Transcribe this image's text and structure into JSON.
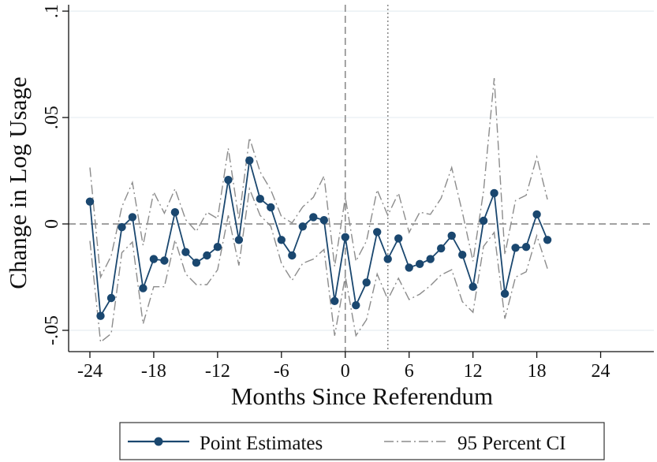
{
  "colors": {
    "point_series": "#1a476f",
    "ci_series": "#8c8c8c",
    "grid": "#e6eef2",
    "reference": "#8c8c8c",
    "axis": "#111111"
  },
  "chart_data": {
    "type": "line",
    "title": "",
    "xlabel": "Months Since Referendum",
    "ylabel": "Change in Log Usage",
    "xlim": [
      -26,
      29
    ],
    "ylim": [
      -0.06,
      0.103
    ],
    "xticks": [
      -24,
      -18,
      -12,
      -6,
      0,
      6,
      12,
      18,
      24
    ],
    "xtick_labels": [
      "-24",
      "-18",
      "-12",
      "-6",
      "0",
      "6",
      "12",
      "18",
      "24"
    ],
    "yticks": [
      -0.05,
      0,
      0.05,
      0.1
    ],
    "ytick_labels": [
      "-.05",
      "0",
      ".05",
      ".1"
    ],
    "grid": true,
    "reference_lines": {
      "horizontal_y": 0,
      "vertical_dashed_x": 0,
      "vertical_dotted_x": 4
    },
    "legend_position": "bottom",
    "x": [
      -24,
      -23,
      -22,
      -21,
      -20,
      -19,
      -18,
      -17,
      -16,
      -15,
      -14,
      -13,
      -12,
      -11,
      -10,
      -9,
      -8,
      -7,
      -6,
      -5,
      -4,
      -3,
      -2,
      -1,
      0,
      1,
      2,
      3,
      4,
      5,
      6,
      7,
      8,
      9,
      10,
      11,
      12,
      13,
      14,
      15,
      16,
      17,
      18,
      19
    ],
    "series": [
      {
        "name": "Point Estimates",
        "style": "solid-with-markers",
        "values": [
          0.0105,
          -0.0432,
          -0.0348,
          -0.0015,
          0.0032,
          -0.0302,
          -0.0165,
          -0.0172,
          0.0055,
          -0.0132,
          -0.0182,
          -0.0148,
          -0.0108,
          0.0207,
          -0.0075,
          0.0298,
          0.0118,
          0.0078,
          -0.0075,
          -0.0148,
          -0.0012,
          0.0032,
          0.0018,
          -0.0362,
          -0.0062,
          -0.0382,
          -0.0275,
          -0.0038,
          -0.0165,
          -0.0068,
          -0.0205,
          -0.0188,
          -0.0165,
          -0.0115,
          -0.0055,
          -0.0145,
          -0.0295,
          0.0015,
          0.0145,
          -0.0328,
          -0.0112,
          -0.0108,
          0.0045,
          -0.0075
        ]
      },
      {
        "name": "95 Percent CI",
        "style": "dash-dot",
        "upper": [
          0.0265,
          -0.025,
          -0.015,
          0.008,
          0.0195,
          -0.01,
          0.015,
          0.005,
          0.0165,
          0.002,
          -0.0035,
          0.0055,
          0.0025,
          0.0355,
          0.002,
          0.0405,
          0.0245,
          0.016,
          0.0035,
          0.0005,
          0.008,
          0.0125,
          0.0225,
          -0.02,
          0.0125,
          -0.0175,
          -0.008,
          0.016,
          0.004,
          0.0145,
          -0.004,
          0.0055,
          0.0045,
          0.012,
          0.0265,
          0.0055,
          -0.0175,
          0.0155,
          0.0685,
          -0.0145,
          0.011,
          0.0135,
          0.0315,
          0.0115
        ],
        "lower": [
          -0.008,
          -0.0555,
          -0.0515,
          -0.0135,
          -0.0085,
          -0.047,
          -0.0295,
          -0.0295,
          -0.0075,
          -0.0235,
          -0.0285,
          -0.0285,
          -0.0215,
          0.004,
          -0.0195,
          0.0165,
          0.004,
          -0.001,
          -0.0185,
          -0.0265,
          -0.0185,
          -0.0165,
          -0.012,
          -0.0525,
          -0.0245,
          -0.0525,
          -0.045,
          -0.0235,
          -0.0355,
          -0.0255,
          -0.0355,
          -0.033,
          -0.029,
          -0.024,
          -0.0215,
          -0.0365,
          -0.0415,
          -0.0105,
          -0.004,
          -0.0445,
          -0.025,
          -0.0225,
          -0.0055,
          -0.021
        ]
      }
    ]
  }
}
